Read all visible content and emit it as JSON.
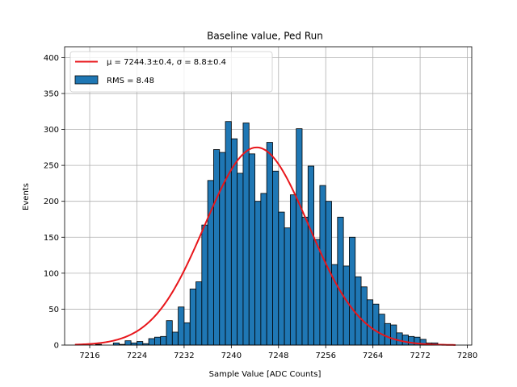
{
  "chart_data": {
    "type": "bar",
    "title": "Baseline value, Ped Run",
    "xlabel": "Sample Value [ADC Counts]",
    "ylabel": "Events",
    "xlim": [
      7211.75,
      7280.75
    ],
    "ylim": [
      0,
      415
    ],
    "xticks": [
      7216,
      7224,
      7232,
      7240,
      7248,
      7256,
      7264,
      7272,
      7280
    ],
    "yticks": [
      0,
      50,
      100,
      150,
      200,
      250,
      300,
      350,
      400
    ],
    "grid": true,
    "legend_position": "top-left",
    "bin_width": 1,
    "bin_starts": [
      7214,
      7215,
      7216,
      7217,
      7218,
      7219,
      7220,
      7221,
      7222,
      7223,
      7224,
      7225,
      7226,
      7227,
      7228,
      7229,
      7230,
      7231,
      7232,
      7233,
      7234,
      7235,
      7236,
      7237,
      7238,
      7239,
      7240,
      7241,
      7242,
      7243,
      7244,
      7245,
      7246,
      7247,
      7248,
      7249,
      7250,
      7251,
      7252,
      7253,
      7254,
      7255,
      7256,
      7257,
      7258,
      7259,
      7260,
      7261,
      7262,
      7263,
      7264,
      7265,
      7266,
      7267,
      7268,
      7269,
      7270,
      7271,
      7272,
      7273,
      7274,
      7275,
      7276
    ],
    "counts": [
      0,
      0,
      0,
      1,
      0,
      0,
      3,
      1,
      6,
      3,
      5,
      2,
      9,
      11,
      12,
      34,
      18,
      53,
      31,
      78,
      88,
      167,
      229,
      272,
      268,
      311,
      287,
      239,
      309,
      266,
      200,
      211,
      282,
      242,
      185,
      163,
      209,
      301,
      178,
      249,
      147,
      222,
      200,
      112,
      178,
      110,
      150,
      95,
      81,
      63,
      57,
      43,
      30,
      28,
      17,
      14,
      12,
      11,
      8,
      3,
      3,
      1,
      0
    ],
    "series": [
      {
        "name": "RMS = 8.48",
        "kind": "histogram",
        "color": "#1f77b4",
        "edgecolor": "#000000"
      },
      {
        "name": "μ = 7244.3±0.4, σ = 8.8±0.4",
        "kind": "gaussian-fit",
        "color": "#e8161b",
        "mu": 7244.3,
        "sigma": 8.8,
        "amplitude": 275,
        "x_range": [
          7213.5,
          7278.0
        ]
      }
    ]
  }
}
